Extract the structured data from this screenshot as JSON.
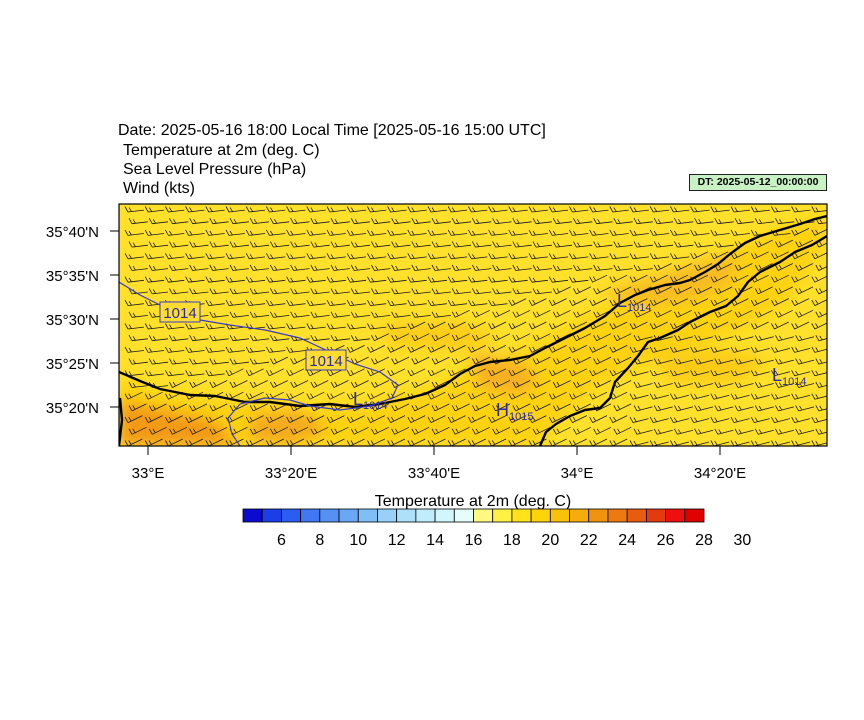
{
  "header": {
    "date_line": "Date: 2025-05-16  18:00 Local Time [2025-05-16  15:00 UTC]",
    "line1": "Temperature at 2m   (deg. C)",
    "line2": "Sea Level Pressure   (hPa)",
    "line3": "Wind   (kts)"
  },
  "dt_label": "DT: 2025-05-12_00:00:00",
  "map": {
    "lon_ticks": [
      "33°E",
      "33°20'E",
      "33°40'E",
      "34°E",
      "34°20'E"
    ],
    "lat_ticks": [
      "35°40'N",
      "35°35'N",
      "35°30'N",
      "35°25'N",
      "35°20'N"
    ],
    "isobar_labels": [
      "1014",
      "1014"
    ],
    "pressure_centers": [
      {
        "type": "L",
        "value": "1014"
      },
      {
        "type": "L",
        "value": "1014"
      },
      {
        "type": "H",
        "value": "1015"
      },
      {
        "type": "L",
        "value": "1014"
      }
    ],
    "colors": {
      "land_warm": "#f6b321",
      "sea": "#ffe02a",
      "isobar": "#3a3acc",
      "coast": "#000000"
    }
  },
  "colorbar": {
    "title": "Temperature at 2m  (deg. C)",
    "labels": [
      "6",
      "8",
      "10",
      "12",
      "14",
      "16",
      "18",
      "20",
      "22",
      "24",
      "26",
      "28",
      "30"
    ],
    "colors": [
      "#0a0ad0",
      "#1c3ee6",
      "#2b5ef0",
      "#3f78f2",
      "#5590f2",
      "#6aa8f4",
      "#80bef6",
      "#98d0f8",
      "#aee0fa",
      "#c0ecfc",
      "#d2f6fe",
      "#e6fdfe",
      "#fff980",
      "#fff046",
      "#ffe21a",
      "#fdd40a",
      "#f8c20a",
      "#f4ad0a",
      "#f09410",
      "#ec7a10",
      "#e85c10",
      "#e43a10",
      "#ee1010",
      "#e00000"
    ]
  }
}
